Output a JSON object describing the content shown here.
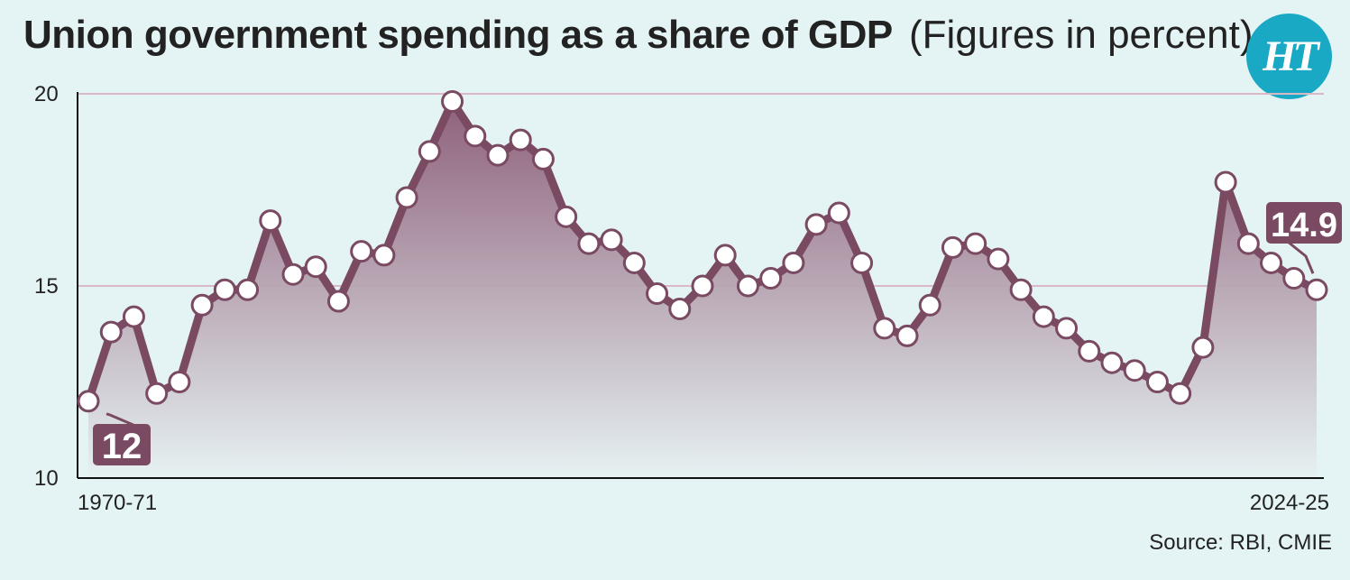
{
  "header": {
    "title": "Union government spending as a share of GDP",
    "subtitle": "(Figures in percent)",
    "logo_text": "HT"
  },
  "source": "Source: RBI, CMIE",
  "colors": {
    "line": "#7a4a62",
    "area_top": "#8a5a74",
    "area_bottom": "#e6f1f2",
    "background": "#e4f3f4",
    "logo": "#1aa9c4",
    "gridline": "#d9b8c8"
  },
  "chart_data": {
    "type": "area",
    "title": "Union government spending as a share of GDP",
    "xlabel": "",
    "ylabel": "",
    "ylim": [
      10,
      20
    ],
    "yticks": [
      10,
      15,
      20
    ],
    "x_tick_labels": [
      "1970-71",
      "2024-25"
    ],
    "grid": "horizontal",
    "legend": "none",
    "annotations": [
      {
        "label": "12",
        "index": 0
      },
      {
        "label": "14.9",
        "index": 54
      }
    ],
    "series": [
      {
        "values": [
          12.0,
          13.8,
          14.2,
          12.2,
          12.5,
          14.5,
          14.9,
          14.9,
          16.7,
          15.3,
          15.5,
          14.6,
          15.9,
          15.8,
          17.3,
          18.5,
          19.8,
          18.9,
          18.4,
          18.8,
          18.3,
          16.8,
          16.1,
          16.2,
          15.6,
          14.8,
          14.4,
          15.0,
          15.8,
          15.0,
          15.2,
          15.6,
          16.6,
          16.9,
          15.6,
          13.9,
          13.7,
          14.5,
          16.0,
          16.1,
          15.7,
          14.9,
          14.2,
          13.9,
          13.3,
          13.0,
          12.8,
          12.5,
          12.2,
          13.4,
          17.7,
          16.1,
          15.6,
          15.2,
          14.9
        ]
      }
    ]
  }
}
